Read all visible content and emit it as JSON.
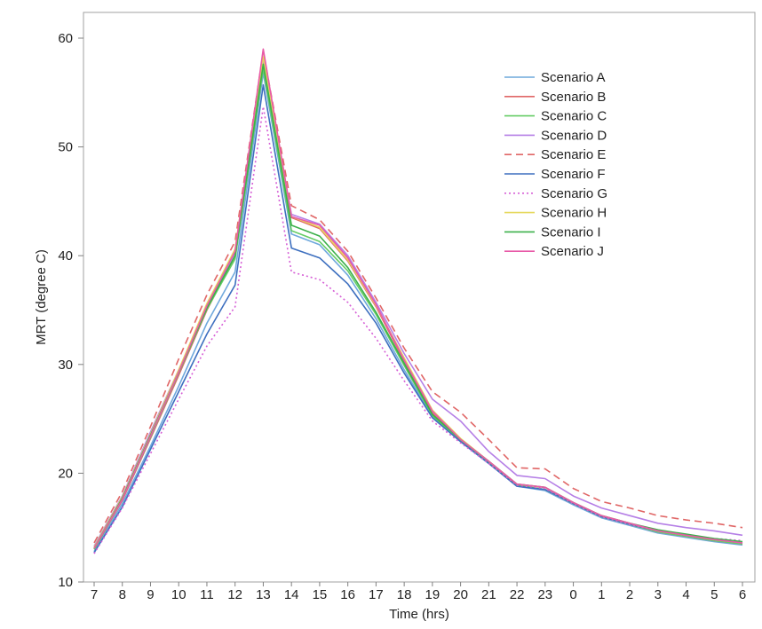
{
  "chart_data": {
    "type": "line",
    "title": "",
    "xlabel": "Time (hrs)",
    "ylabel": "MRT (degree C)",
    "ylim": [
      10,
      62
    ],
    "yticks": [
      10,
      20,
      30,
      40,
      50,
      60
    ],
    "grid": false,
    "legend_position": "top-right",
    "categories": [
      "7",
      "8",
      "9",
      "10",
      "11",
      "12",
      "13",
      "14",
      "15",
      "16",
      "17",
      "18",
      "19",
      "20",
      "21",
      "22",
      "23",
      "0",
      "1",
      "2",
      "3",
      "4",
      "5",
      "6"
    ],
    "series": [
      {
        "name": "Scenario A",
        "color": "#6fa8dc",
        "dash": "solid",
        "values": [
          12.8,
          17.2,
          22.5,
          28.0,
          33.8,
          38.5,
          56.8,
          42.0,
          41.0,
          38.2,
          34.2,
          29.5,
          25.2,
          22.9,
          20.9,
          18.8,
          18.4,
          17.1,
          15.9,
          15.2,
          14.5,
          14.1,
          13.7,
          13.4
        ]
      },
      {
        "name": "Scenario B",
        "color": "#e06666",
        "dash": "solid",
        "values": [
          13.0,
          17.5,
          23.2,
          29.0,
          35.0,
          40.0,
          58.2,
          43.5,
          42.5,
          39.5,
          35.3,
          30.3,
          25.5,
          23.0,
          21.0,
          18.9,
          18.5,
          17.2,
          16.0,
          15.3,
          14.6,
          14.2,
          13.8,
          13.5
        ]
      },
      {
        "name": "Scenario C",
        "color": "#66cc66",
        "dash": "solid",
        "values": [
          13.0,
          17.6,
          23.3,
          29.2,
          35.1,
          39.7,
          57.2,
          42.3,
          41.3,
          38.6,
          34.6,
          29.9,
          25.3,
          23.0,
          21.0,
          18.9,
          18.5,
          17.2,
          16.0,
          15.3,
          14.6,
          14.2,
          13.8,
          13.5
        ]
      },
      {
        "name": "Scenario D",
        "color": "#b57fe6",
        "dash": "solid",
        "values": [
          13.3,
          17.9,
          23.8,
          29.5,
          35.3,
          40.3,
          58.0,
          43.8,
          42.9,
          40.0,
          35.7,
          31.0,
          26.8,
          24.8,
          22.0,
          19.8,
          19.5,
          17.9,
          16.8,
          16.1,
          15.4,
          15.0,
          14.7,
          14.3
        ]
      },
      {
        "name": "Scenario E",
        "color": "#e06666",
        "dash": "dash",
        "values": [
          13.6,
          18.3,
          24.3,
          30.5,
          36.4,
          41.3,
          58.8,
          44.6,
          43.3,
          40.4,
          36.1,
          31.5,
          27.5,
          25.6,
          23.1,
          20.5,
          20.4,
          18.6,
          17.4,
          16.8,
          16.1,
          15.7,
          15.4,
          15.0
        ]
      },
      {
        "name": "Scenario F",
        "color": "#3d6fbf",
        "dash": "solid",
        "values": [
          12.7,
          16.9,
          22.2,
          27.5,
          32.8,
          37.3,
          55.7,
          40.7,
          39.8,
          37.4,
          33.8,
          29.2,
          25.1,
          22.9,
          20.9,
          18.8,
          18.5,
          17.2,
          16.0,
          15.3,
          14.7,
          14.3,
          13.9,
          13.6
        ]
      },
      {
        "name": "Scenario G",
        "color": "#d65fd6",
        "dash": "dot",
        "values": [
          12.6,
          16.8,
          21.8,
          26.8,
          31.7,
          35.3,
          53.7,
          38.5,
          37.8,
          35.7,
          32.4,
          28.5,
          24.8,
          22.8,
          20.9,
          18.9,
          18.6,
          17.2,
          16.0,
          15.3,
          14.7,
          14.3,
          14.0,
          13.8
        ]
      },
      {
        "name": "Scenario H",
        "color": "#e6d85c",
        "dash": "solid",
        "values": [
          13.2,
          17.8,
          23.6,
          29.5,
          35.6,
          40.6,
          58.3,
          43.6,
          42.6,
          39.6,
          35.4,
          30.6,
          25.8,
          23.2,
          21.1,
          19.0,
          18.7,
          17.3,
          16.1,
          15.4,
          14.7,
          14.3,
          13.9,
          13.6
        ]
      },
      {
        "name": "Scenario I",
        "color": "#3cb04a",
        "dash": "solid",
        "values": [
          13.1,
          17.7,
          23.5,
          29.3,
          35.2,
          40.0,
          57.6,
          42.8,
          41.8,
          38.9,
          34.8,
          30.1,
          25.4,
          23.1,
          21.1,
          19.0,
          18.7,
          17.3,
          16.1,
          15.4,
          14.8,
          14.4,
          14.0,
          13.7
        ]
      },
      {
        "name": "Scenario J",
        "color": "#e85aa8",
        "dash": "solid",
        "values": [
          13.1,
          17.6,
          23.4,
          29.3,
          35.4,
          40.4,
          59.0,
          43.6,
          42.8,
          39.8,
          35.5,
          30.4,
          25.7,
          23.1,
          21.1,
          19.0,
          18.7,
          17.3,
          16.1,
          15.4,
          14.7,
          14.3,
          13.9,
          13.6
        ]
      }
    ]
  }
}
